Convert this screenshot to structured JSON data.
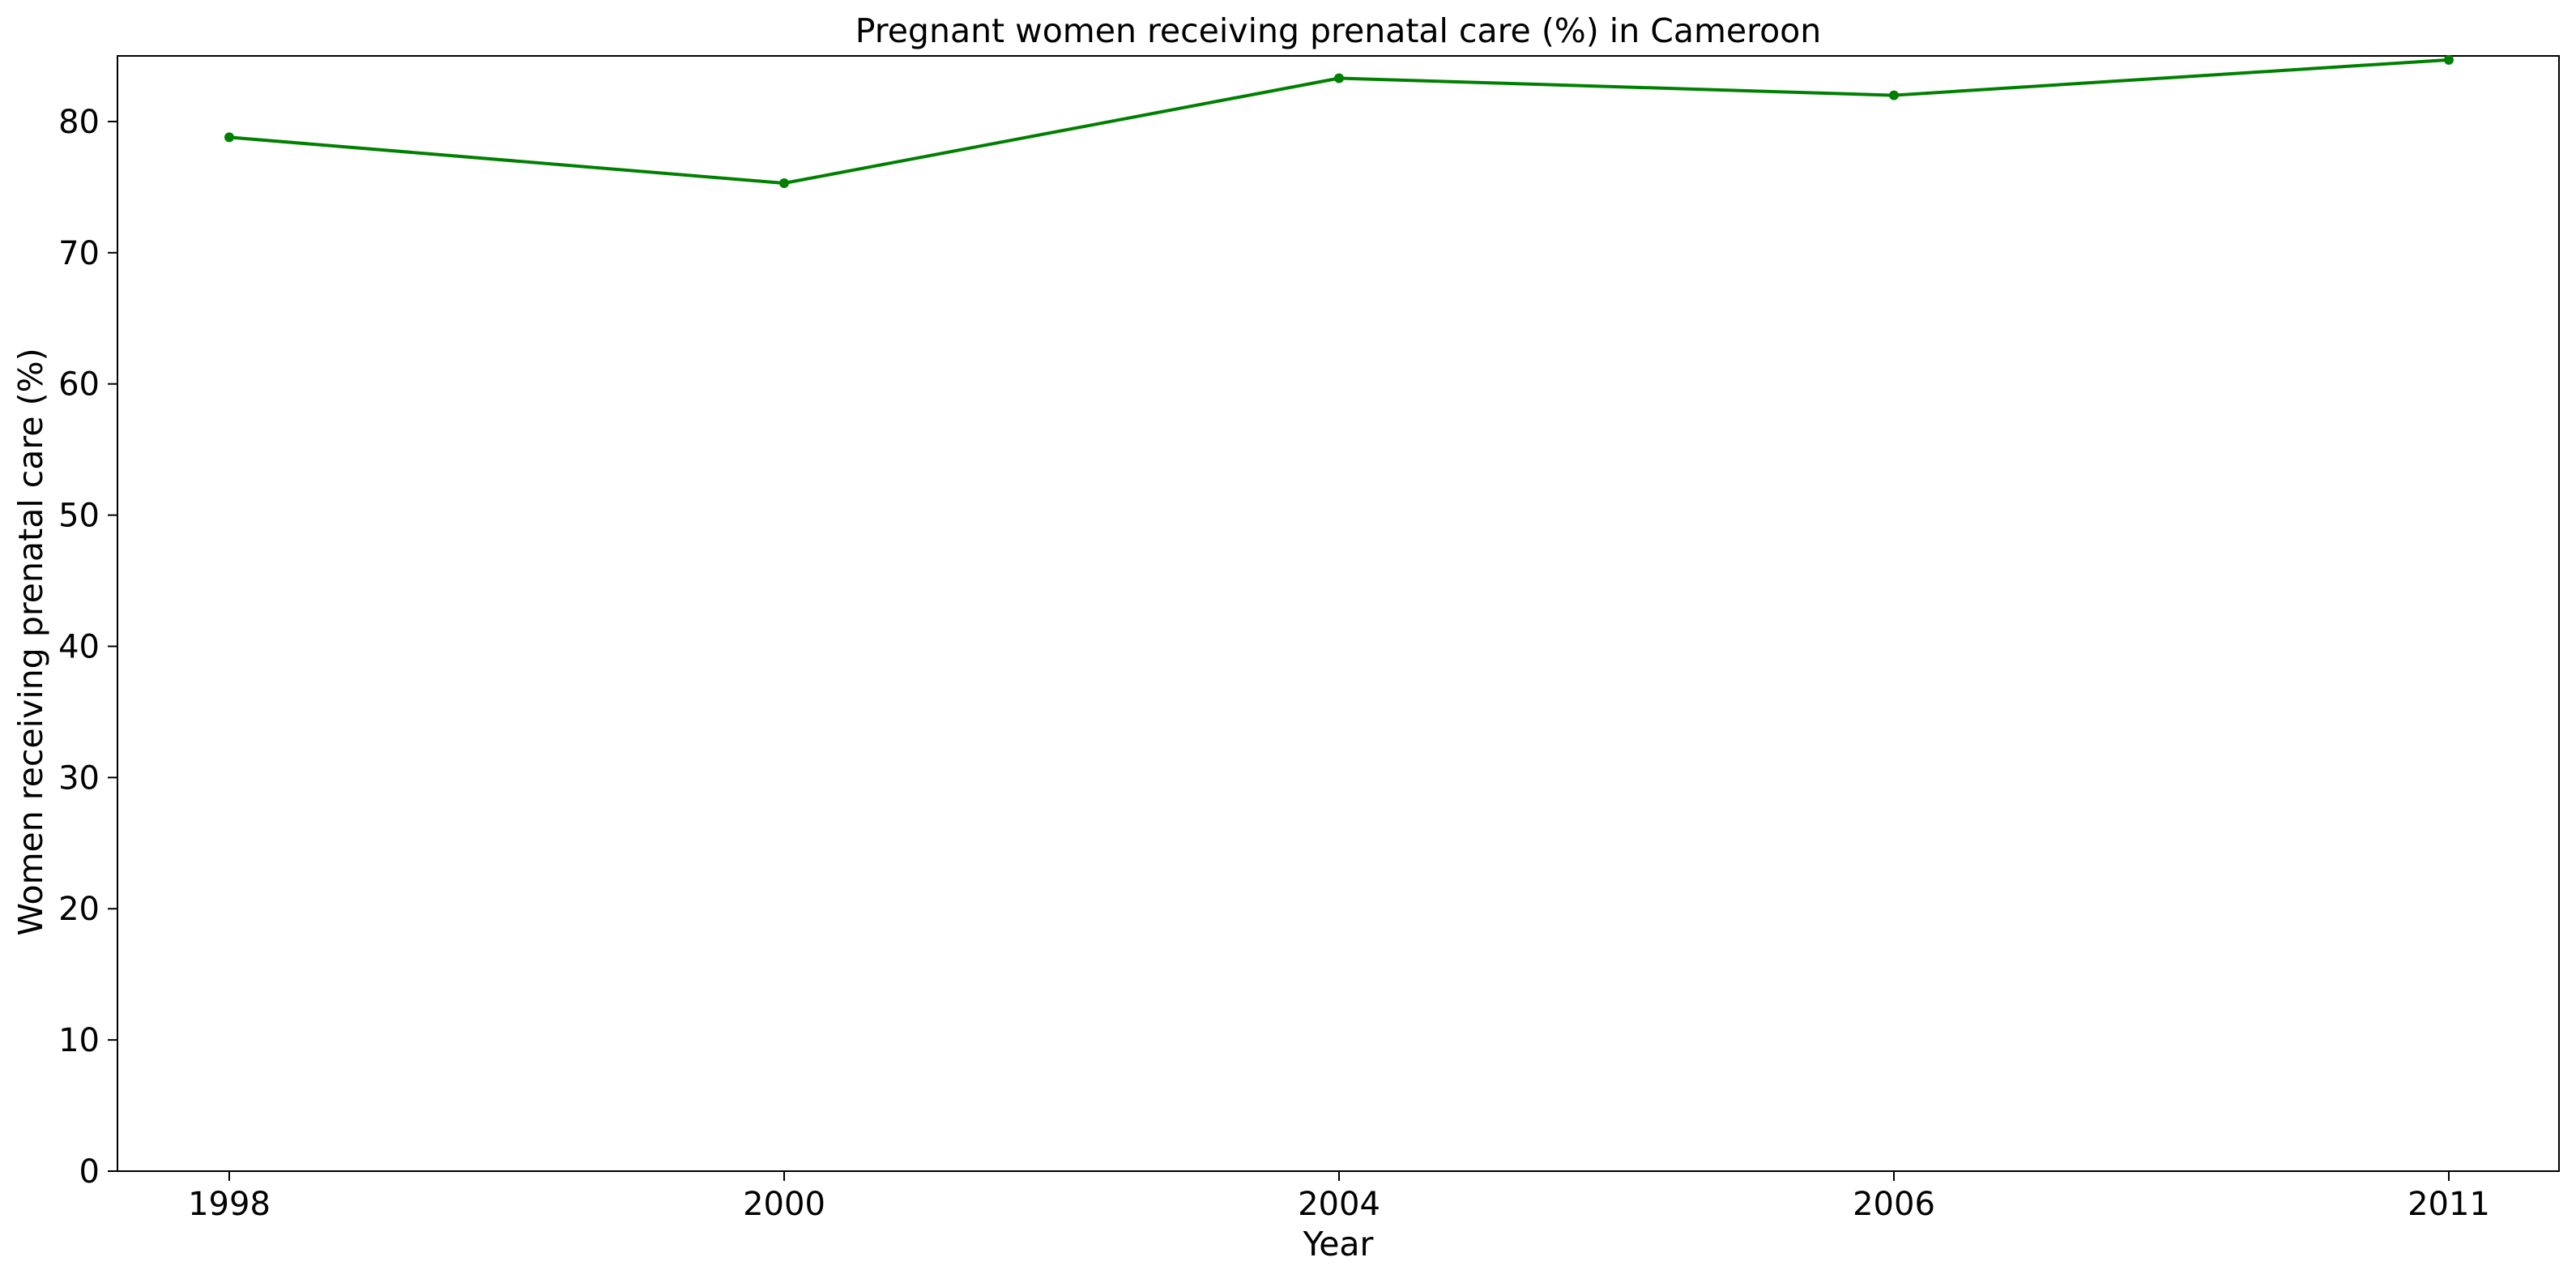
{
  "chart_data": {
    "type": "line",
    "title": "Pregnant women receiving prenatal care (%) in Cameroon",
    "xlabel": "Year",
    "ylabel": "Women receiving prenatal care (%)",
    "categories": [
      "1998",
      "2000",
      "2004",
      "2006",
      "2011"
    ],
    "series": [
      {
        "values": [
          78.8,
          75.3,
          83.3,
          82.0,
          84.7
        ],
        "color": "#008000"
      }
    ],
    "ylim": [
      0,
      85
    ],
    "yticks": [
      0,
      10,
      20,
      30,
      40,
      50,
      60,
      70,
      80
    ],
    "grid": false,
    "legend": "none"
  }
}
